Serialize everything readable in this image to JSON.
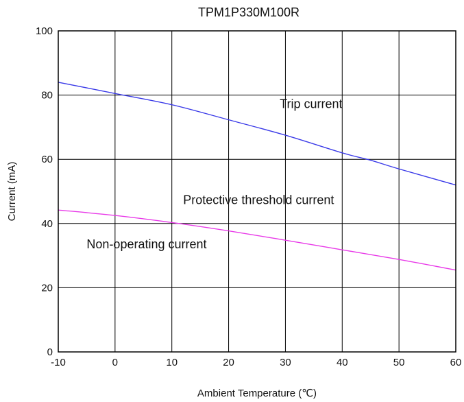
{
  "chart_data": {
    "type": "line",
    "title": "TPM1P330M100R",
    "xlabel": "Ambient Temperature (℃)",
    "ylabel": "Current (mA)",
    "xlim": [
      -10,
      60
    ],
    "ylim": [
      0,
      100
    ],
    "xticks": [
      -10,
      0,
      10,
      20,
      30,
      40,
      50,
      60
    ],
    "yticks": [
      0,
      20,
      40,
      60,
      80,
      100
    ],
    "grid": true,
    "series": [
      {
        "color": "#3a3ae8",
        "x": [
          -10,
          0,
          10,
          20,
          30,
          40,
          45,
          50,
          60
        ],
        "y": [
          84,
          80.5,
          77,
          72.3,
          67.5,
          62,
          59.7,
          57,
          52
        ]
      },
      {
        "color": "#e83ae8",
        "x": [
          -10,
          0,
          10,
          20,
          30,
          40,
          50,
          60
        ],
        "y": [
          44.2,
          42.5,
          40.3,
          37.7,
          34.8,
          31.8,
          28.8,
          25.5
        ]
      }
    ],
    "annotations": [
      {
        "text": "Trip current",
        "x": 29,
        "y": 76
      },
      {
        "text": "Protective threshold current",
        "x": 12,
        "y": 46
      },
      {
        "text": "Non-operating current",
        "x": -5,
        "y": 32.3
      }
    ]
  }
}
